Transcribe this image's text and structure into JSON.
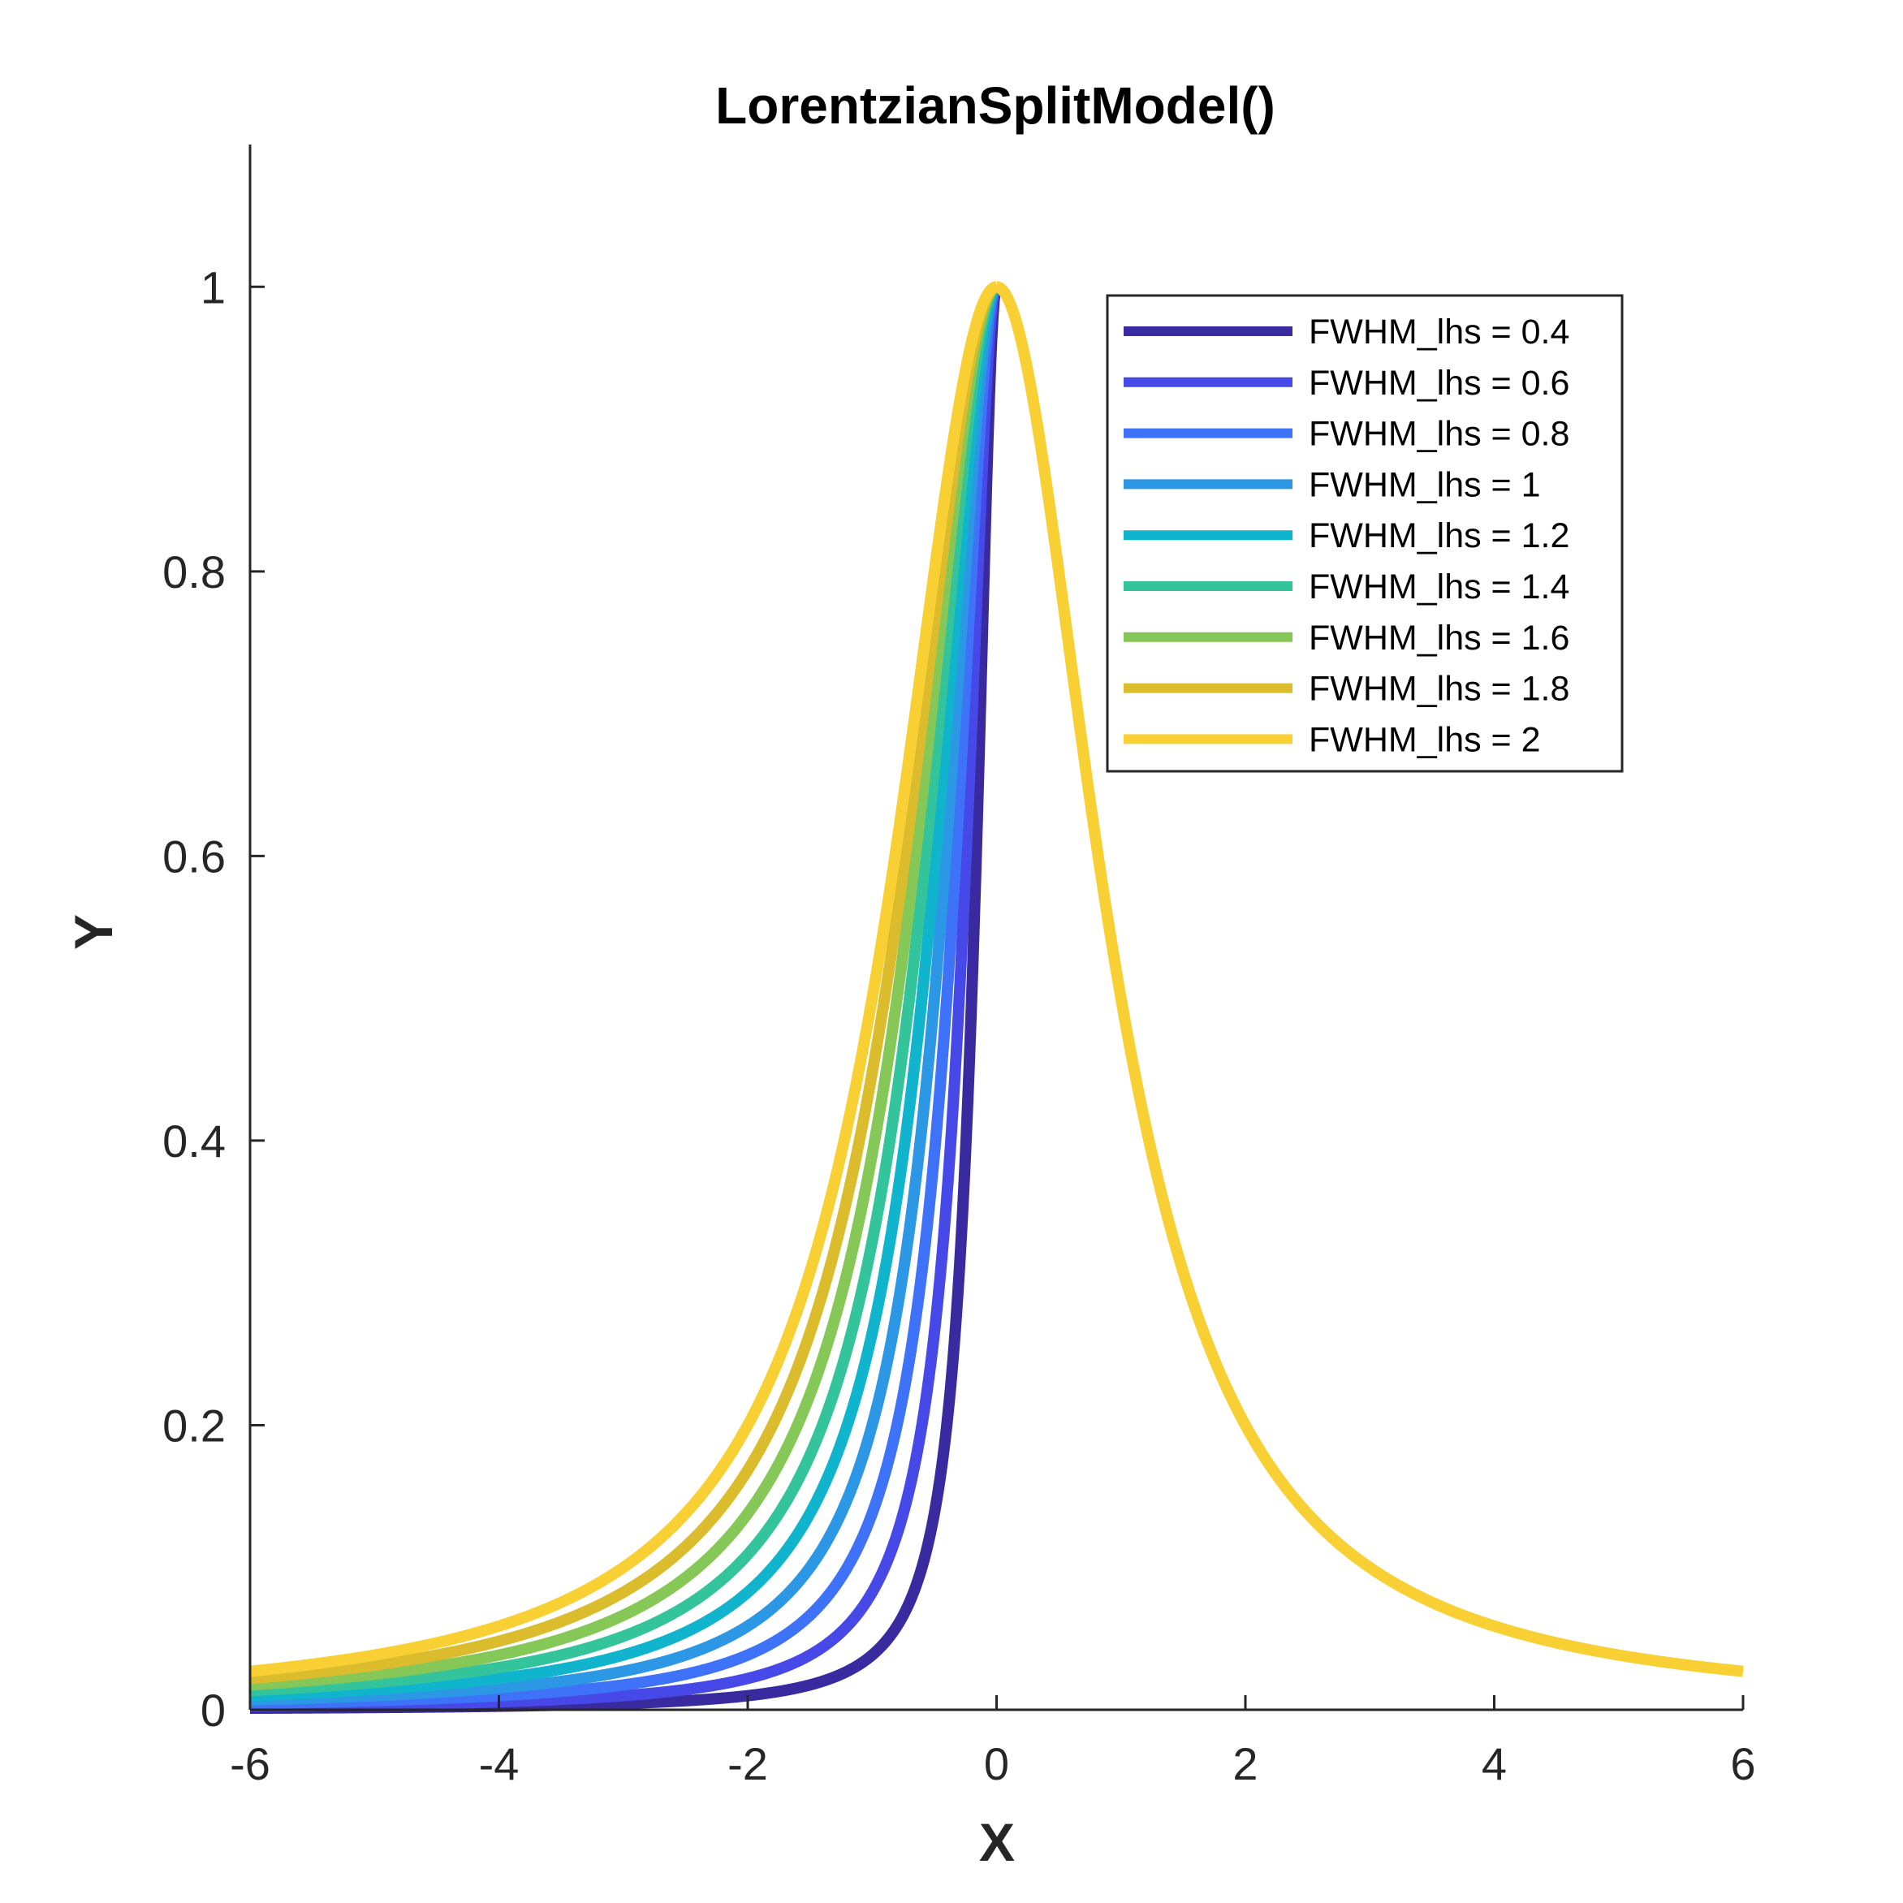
{
  "chart_data": {
    "type": "line",
    "title": "LorentzianSplitModel()",
    "xlabel": "X",
    "ylabel": "Y",
    "xlim": [
      -6,
      6
    ],
    "ylim": [
      0,
      1.1
    ],
    "xticks": [
      "-6",
      "-4",
      "-2",
      "0",
      "2",
      "4",
      "6"
    ],
    "yticks": [
      "0",
      "0.2",
      "0.4",
      "0.6",
      "0.8",
      "1"
    ],
    "grid": false,
    "legend_position": "top-right",
    "rhs_fwhm": 2,
    "series": [
      {
        "name": "FWHM_lhs = 0.4",
        "fwhm_lhs": 0.4,
        "color": "#3a2aa0"
      },
      {
        "name": "FWHM_lhs = 0.6",
        "fwhm_lhs": 0.6,
        "color": "#4648e8"
      },
      {
        "name": "FWHM_lhs = 0.8",
        "fwhm_lhs": 0.8,
        "color": "#3e72f8"
      },
      {
        "name": "FWHM_lhs = 1",
        "fwhm_lhs": 1,
        "color": "#2c97e4"
      },
      {
        "name": "FWHM_lhs = 1.2",
        "fwhm_lhs": 1.2,
        "color": "#10b4cc"
      },
      {
        "name": "FWHM_lhs = 1.4",
        "fwhm_lhs": 1.4,
        "color": "#34c49c"
      },
      {
        "name": "FWHM_lhs = 1.6",
        "fwhm_lhs": 1.6,
        "color": "#86c858"
      },
      {
        "name": "FWHM_lhs = 1.8",
        "fwhm_lhs": 1.8,
        "color": "#dabc2c"
      },
      {
        "name": "FWHM_lhs = 2",
        "fwhm_lhs": 2,
        "color": "#f8d034"
      }
    ]
  }
}
